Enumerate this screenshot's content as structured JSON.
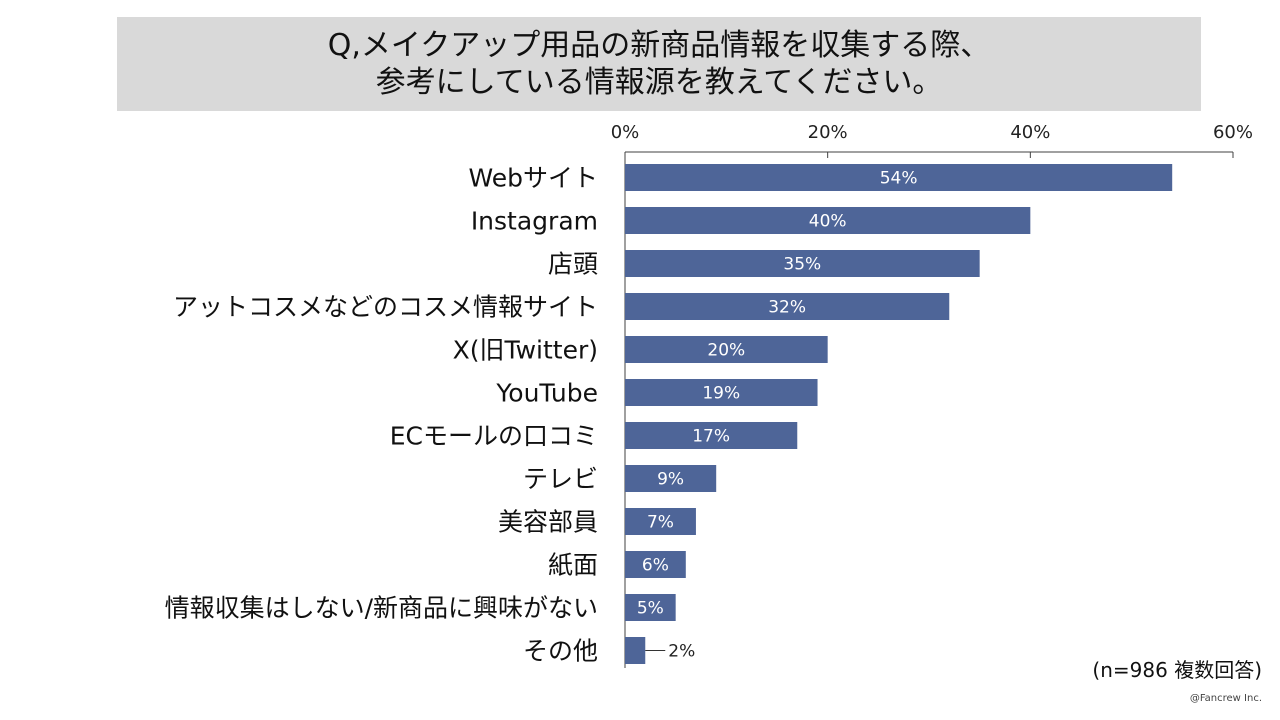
{
  "title": {
    "line1": "Q,メイクアップ用品の新商品情報を収集する際、",
    "line2": "参考にしている情報源を教えてください。"
  },
  "note": "(n=986 複数回答)",
  "credit": "@Fancrew Inc.",
  "colors": {
    "bar": "#4e6598",
    "bar_label": "#ffffff",
    "axis": "#404040"
  },
  "chart_data": {
    "type": "bar",
    "orientation": "horizontal",
    "categories": [
      "Webサイト",
      "Instagram",
      "店頭",
      "アットコスメなどのコスメ情報サイト",
      "X(旧Twitter)",
      "YouTube",
      "ECモールの口コミ",
      "テレビ",
      "美容部員",
      "紙面",
      "情報収集はしない/新商品に興味がない",
      "その他"
    ],
    "values": [
      54,
      40,
      35,
      32,
      20,
      19,
      17,
      9,
      7,
      6,
      5,
      2
    ],
    "value_labels": [
      "54%",
      "40%",
      "35%",
      "32%",
      "20%",
      "19%",
      "17%",
      "9%",
      "7%",
      "6%",
      "5%",
      "2%"
    ],
    "xlim": [
      0,
      60
    ],
    "xticks": [
      0,
      20,
      40,
      60
    ],
    "xtick_labels": [
      "0%",
      "20%",
      "40%",
      "60%"
    ],
    "axis_position": "top",
    "grid": false,
    "legend": "none"
  }
}
